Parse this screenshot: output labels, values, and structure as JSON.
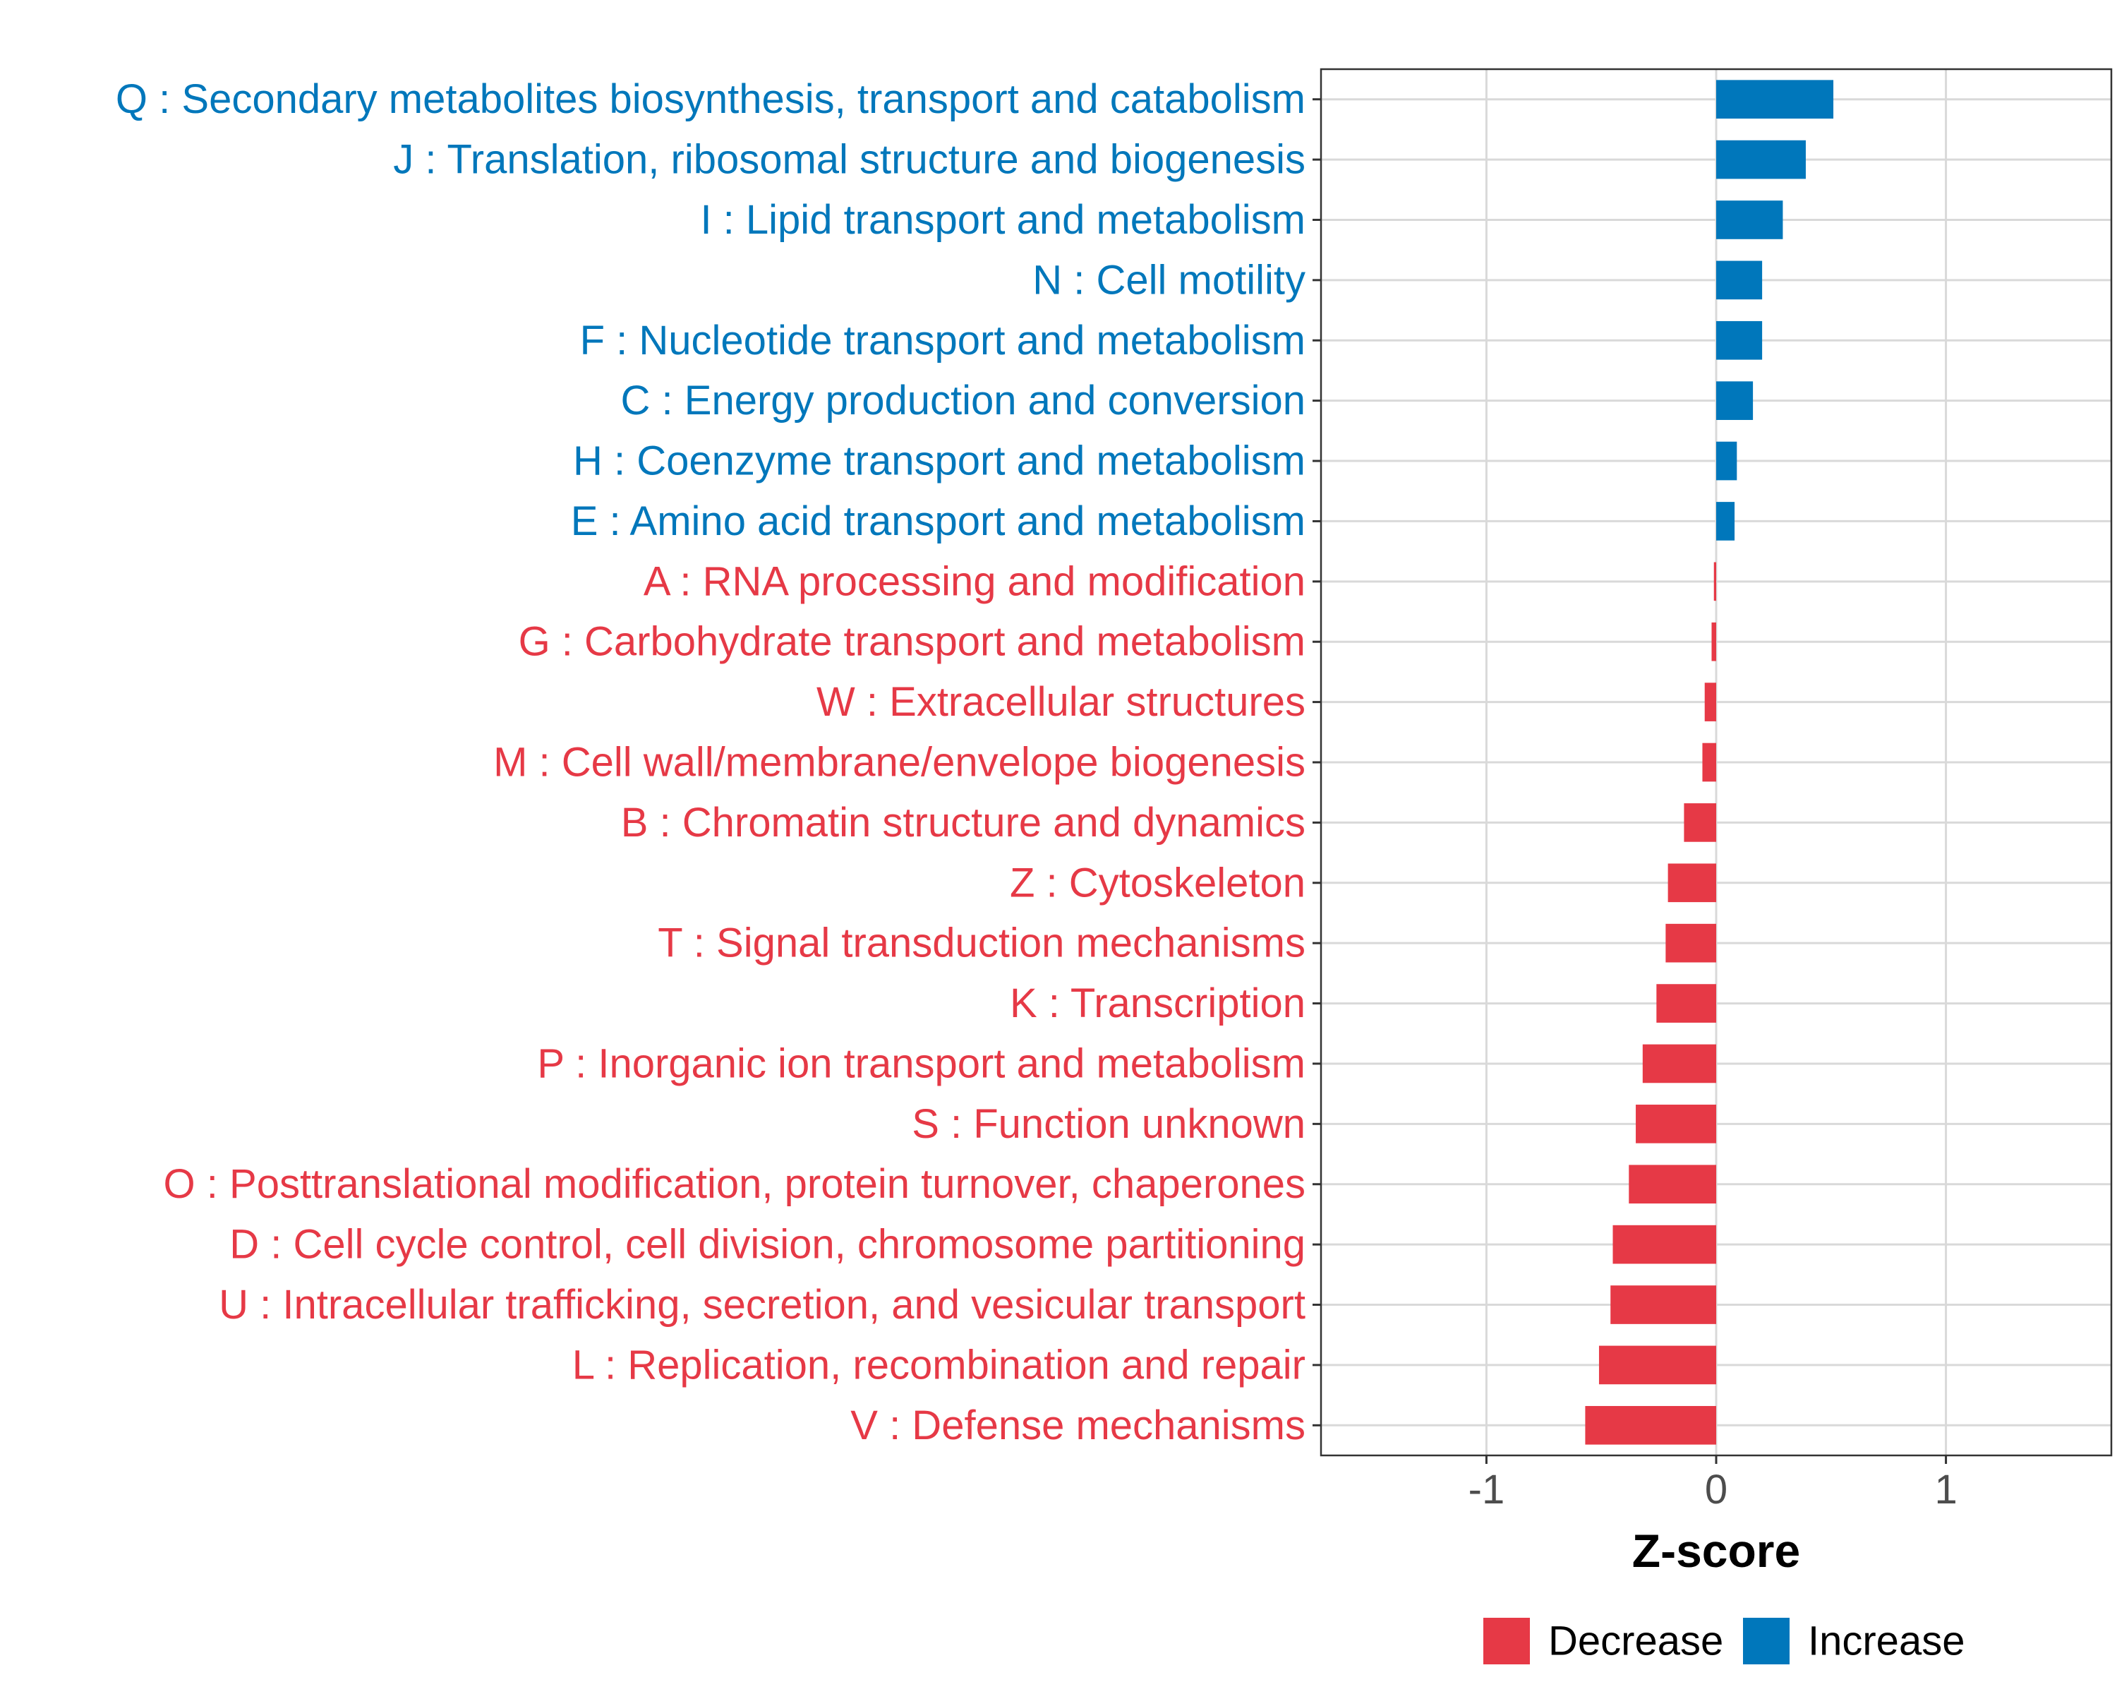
{
  "chart_data": {
    "type": "bar",
    "orientation": "horizontal",
    "title": "",
    "xlabel": "Z-score",
    "ylabel": "",
    "xlim": [
      -1.72,
      1.72
    ],
    "xticks": [
      -1,
      0,
      1
    ],
    "grid": true,
    "legend_position": "bottom",
    "colors": {
      "Decrease": "#E63946",
      "Increase": "#0077BB"
    },
    "categories": [
      "Q : Secondary metabolites biosynthesis, transport and catabolism",
      "J : Translation, ribosomal structure and biogenesis",
      "I : Lipid transport and metabolism",
      "N : Cell motility",
      "F : Nucleotide transport and metabolism",
      "C : Energy production and conversion",
      "H : Coenzyme transport and metabolism",
      "E : Amino acid transport and metabolism",
      "A : RNA processing and modification",
      "G : Carbohydrate transport and metabolism",
      "W : Extracellular structures",
      "M : Cell wall/membrane/envelope biogenesis",
      "B : Chromatin structure and dynamics",
      "Z : Cytoskeleton",
      "T : Signal transduction mechanisms",
      "K : Transcription",
      "P : Inorganic ion transport and metabolism",
      "S : Function unknown",
      "O : Posttranslational modification, protein turnover, chaperones",
      "D : Cell cycle control, cell division, chromosome partitioning",
      "U : Intracellular trafficking, secretion, and vesicular transport",
      "L : Replication, recombination and repair",
      "V : Defense mechanisms"
    ],
    "values": [
      0.51,
      0.39,
      0.29,
      0.2,
      0.2,
      0.16,
      0.09,
      0.08,
      -0.01,
      -0.02,
      -0.05,
      -0.06,
      -0.14,
      -0.21,
      -0.22,
      -0.26,
      -0.32,
      -0.35,
      -0.38,
      -0.45,
      -0.46,
      -0.51,
      -0.57
    ],
    "groups": [
      "Increase",
      "Increase",
      "Increase",
      "Increase",
      "Increase",
      "Increase",
      "Increase",
      "Increase",
      "Decrease",
      "Decrease",
      "Decrease",
      "Decrease",
      "Decrease",
      "Decrease",
      "Decrease",
      "Decrease",
      "Decrease",
      "Decrease",
      "Decrease",
      "Decrease",
      "Decrease",
      "Decrease",
      "Decrease"
    ],
    "legend": [
      {
        "label": "Decrease",
        "color": "#E63946"
      },
      {
        "label": "Increase",
        "color": "#0077BB"
      }
    ]
  }
}
